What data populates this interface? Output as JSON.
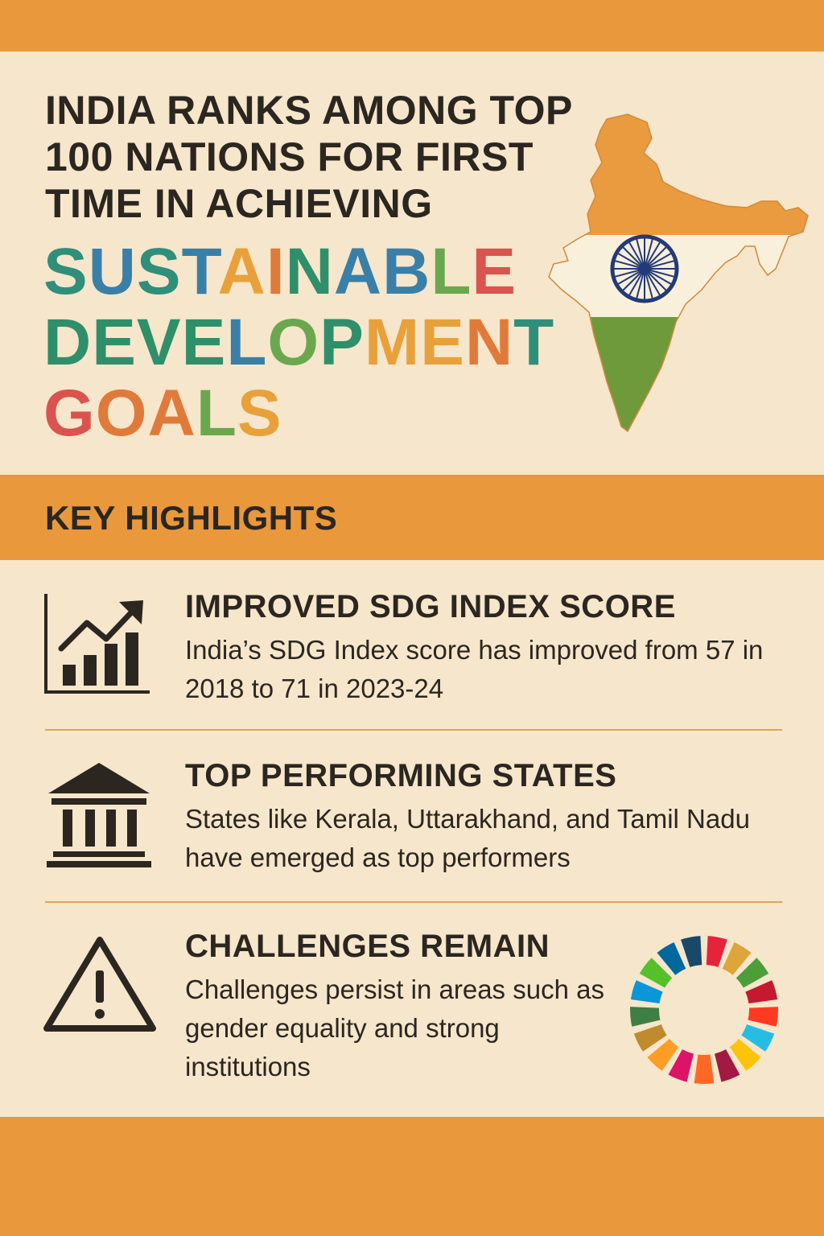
{
  "headline": "INDIA RANKS AMONG TOP 100 NATIONS FOR FIRST TIME IN ACHIEVING",
  "sdg_title": {
    "lines": [
      [
        {
          "t": "S",
          "c": "#2f8f7a"
        },
        {
          "t": "U",
          "c": "#3a7fa8"
        },
        {
          "t": "S",
          "c": "#2f8f7a"
        },
        {
          "t": "T",
          "c": "#3a7fa8"
        },
        {
          "t": "A",
          "c": "#e8a13a"
        },
        {
          "t": "I",
          "c": "#e07a3a"
        },
        {
          "t": "N",
          "c": "#2f8f6a"
        },
        {
          "t": "A",
          "c": "#3a7fa8"
        },
        {
          "t": "B",
          "c": "#3a7fa8"
        },
        {
          "t": "L",
          "c": "#6aa84f"
        },
        {
          "t": "E",
          "c": "#d9534f"
        }
      ],
      [
        {
          "t": "D",
          "c": "#2f8f6a"
        },
        {
          "t": "E",
          "c": "#2f8f6a"
        },
        {
          "t": "V",
          "c": "#2f8f6a"
        },
        {
          "t": "E",
          "c": "#2f8f6a"
        },
        {
          "t": "L",
          "c": "#3a7fa8"
        },
        {
          "t": "O",
          "c": "#6aa84f"
        },
        {
          "t": "P",
          "c": "#2f8f6a"
        },
        {
          "t": "M",
          "c": "#e8a13a"
        },
        {
          "t": "E",
          "c": "#e8a13a"
        },
        {
          "t": "N",
          "c": "#e07a3a"
        },
        {
          "t": "T",
          "c": "#2f8f7a"
        }
      ],
      [
        {
          "t": "G",
          "c": "#d9534f"
        },
        {
          "t": "O",
          "c": "#e07a3a"
        },
        {
          "t": "A",
          "c": "#e07a3a"
        },
        {
          "t": "L",
          "c": "#6aa84f"
        },
        {
          "t": "S",
          "c": "#e8a13a"
        }
      ]
    ]
  },
  "key_highlights": {
    "title": "KEY HIGHLIGHTS"
  },
  "items": [
    {
      "icon": "bar-chart-trend-icon",
      "title": "IMPROVED SDG INDEX SCORE",
      "text": "India’s SDG Index score has improved from 57 in 2018 to 71 in 2023-24"
    },
    {
      "icon": "institution-building-icon",
      "title": "TOP PERFORMING STATES",
      "text": "States like Kerala, Uttarakhand, and Tamil Nadu have emerged as top performers"
    },
    {
      "icon": "warning-triangle-icon",
      "title": "CHALLENGES REMAIN",
      "text": "Challenges persist in areas such as gender equality and strong institutions"
    }
  ],
  "colors": {
    "saffron": "#e9983c",
    "cream": "#f6e6cb",
    "flag_saffron": "#eb9b3f",
    "flag_white": "#f9f0dc",
    "flag_green": "#6f9a3c",
    "chakra_blue": "#233a78",
    "sdg_wheel": [
      "#e5243b",
      "#dda63a",
      "#4c9f38",
      "#c5192d",
      "#ff3a21",
      "#26bde2",
      "#fcc30b",
      "#a21942",
      "#fd6925",
      "#dd1367",
      "#fd9d24",
      "#bf8b2e",
      "#3f7e44",
      "#0a97d9",
      "#56c02b",
      "#00689d",
      "#19486a"
    ]
  }
}
